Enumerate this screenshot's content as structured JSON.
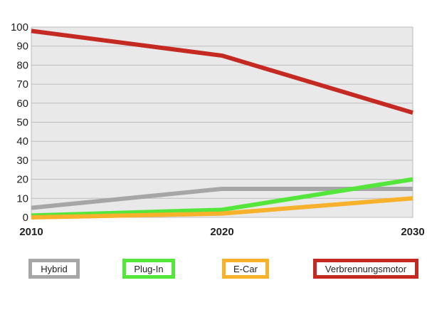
{
  "chart_data": {
    "type": "line",
    "x": [
      2010,
      2020,
      2030
    ],
    "xticks": [
      "2010",
      "2020",
      "2030"
    ],
    "yticks": [
      0,
      10,
      20,
      30,
      40,
      50,
      60,
      70,
      80,
      90,
      100
    ],
    "ylim": [
      0,
      100
    ],
    "grid": true,
    "legend_position": "bottom",
    "series": [
      {
        "name": "Hybrid",
        "color": "#a6a6a6",
        "values": [
          5,
          15,
          15
        ]
      },
      {
        "name": "Plug-In",
        "color": "#55e63c",
        "values": [
          1,
          4,
          20
        ]
      },
      {
        "name": "E-Car",
        "color": "#f7b12a",
        "values": [
          0,
          2,
          10
        ]
      },
      {
        "name": "Verbrennungsmotor",
        "color": "#c42a22",
        "values": [
          98,
          85,
          55
        ]
      }
    ]
  }
}
